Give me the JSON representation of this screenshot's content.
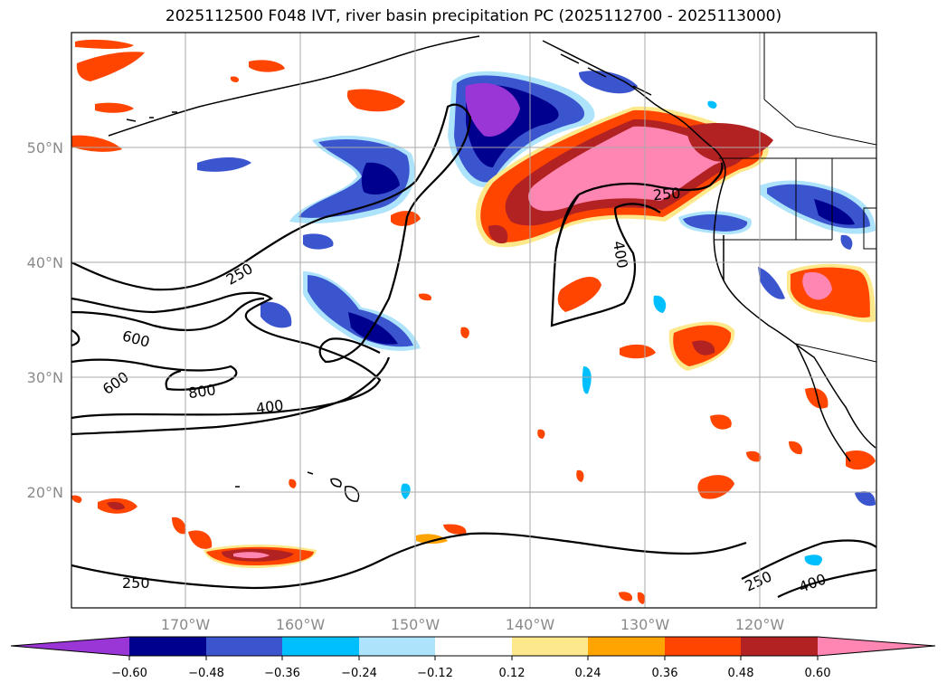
{
  "title": "2025112500 F048 IVT, river basin precipitation PC (2025112700 - 2025113000)",
  "latitude_labels": [
    "50°N",
    "40°N",
    "30°N",
    "20°N"
  ],
  "longitude_labels": [
    "170°W",
    "160°W",
    "150°W",
    "140°W",
    "130°W",
    "120°W"
  ],
  "contour_labels": [
    "250",
    "250",
    "600",
    "600",
    "800",
    "400",
    "400",
    "250",
    "250",
    "400"
  ],
  "colorbar": {
    "tick_labels": [
      "−0.60",
      "−0.48",
      "−0.36",
      "−0.24",
      "−0.12",
      "0.12",
      "0.24",
      "0.36",
      "0.48",
      "0.60"
    ],
    "colors": [
      "#9a35d6",
      "#00008f",
      "#3b55cf",
      "#00bfff",
      "#ade3fb",
      "#ffffff",
      "#fde98b",
      "#ffa400",
      "#ff4500",
      "#b22222",
      "#ff86b2"
    ],
    "extend": "both"
  },
  "colors": {
    "contour": "#000000",
    "coastline": "#000000",
    "grid": "#aaaaaa"
  }
}
